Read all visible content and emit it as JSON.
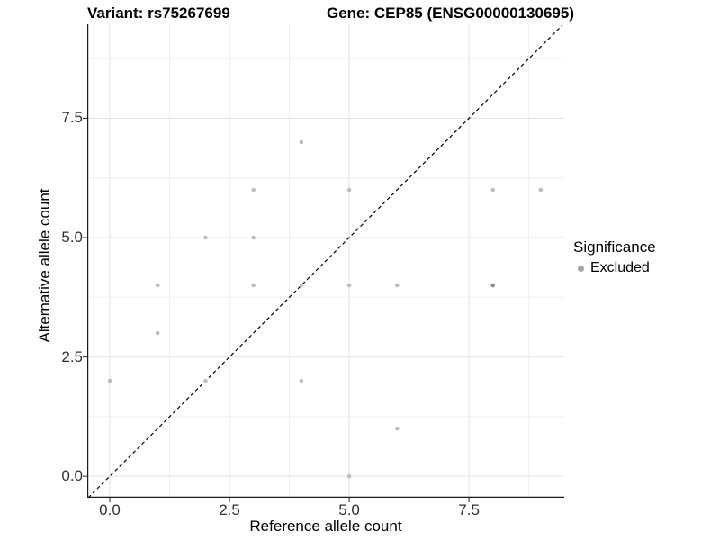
{
  "figure": {
    "title_left": "Variant: rs75267699",
    "title_right": "Gene: CEP85 (ENSG00000130695)"
  },
  "chart_data": {
    "type": "scatter",
    "title_left": "Variant: rs75267699",
    "title_right": "Gene: CEP85 (ENSG00000130695)",
    "xlabel": "Reference allele count",
    "ylabel": "Alternative allele count",
    "xlim": [
      -0.47,
      9.49
    ],
    "ylim": [
      -0.45,
      9.47
    ],
    "x_ticks": {
      "values": [
        0,
        2.5,
        5,
        7.5
      ],
      "labels": [
        "0.0",
        "2.5",
        "5.0",
        "7.5"
      ]
    },
    "y_ticks": {
      "values": [
        0,
        2.5,
        5,
        7.5
      ],
      "labels": [
        "0.0",
        "2.5",
        "5.0",
        "7.5"
      ]
    },
    "minor_gridlines": [
      1.25,
      3.75,
      6.25,
      8.75
    ],
    "grid": "major and minor, light gray on white",
    "axis_line_color": "#1a1a1a",
    "major_grid_color": "#e3e3e3",
    "minor_grid_color": "#f0f0f0",
    "identity_line": {
      "style": "dashed",
      "equation": "y = x",
      "from": -0.45,
      "to": 9.45,
      "color": "#000000"
    },
    "series": [
      {
        "name": "Excluded",
        "point_color": "#bebebe",
        "overlap_point_color": "#8e8e8e",
        "points": [
          [
            0,
            2
          ],
          [
            1,
            3
          ],
          [
            1,
            4
          ],
          [
            2,
            2
          ],
          [
            2,
            5
          ],
          [
            3,
            4
          ],
          [
            3,
            5
          ],
          [
            3,
            6
          ],
          [
            4,
            2
          ],
          [
            4,
            4
          ],
          [
            4,
            7
          ],
          [
            5,
            0
          ],
          [
            5,
            4
          ],
          [
            5,
            6
          ],
          [
            6,
            1
          ],
          [
            6,
            4
          ],
          [
            8,
            4
          ],
          [
            8,
            6
          ],
          [
            9,
            6
          ]
        ],
        "overlapped_points": [
          [
            8,
            4
          ]
        ]
      }
    ],
    "legend": {
      "title": "Significance",
      "position": "right",
      "items": [
        {
          "label": "Excluded",
          "marker_color": "#a6a6a6"
        }
      ]
    }
  }
}
